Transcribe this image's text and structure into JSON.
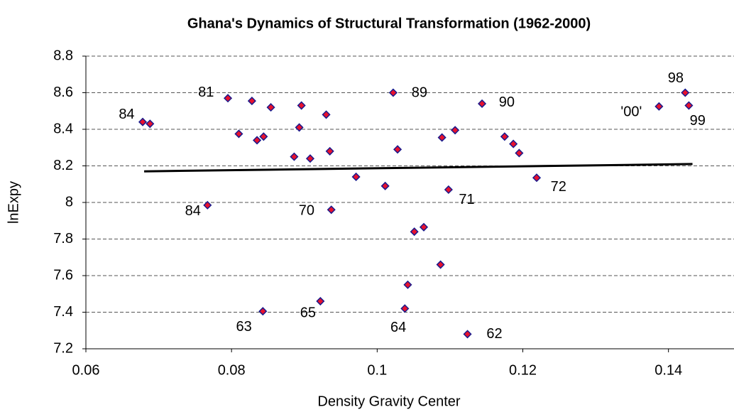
{
  "chart_data": {
    "type": "scatter",
    "title": "Ghana's Dynamics of Structural Transformation (1962-2000)",
    "x_label": "Density Gravity Center",
    "y_label": "lnExpy",
    "x": [
      0.0678,
      0.0688,
      0.0795,
      0.0828,
      0.0854,
      0.0896,
      0.081,
      0.0844,
      0.0835,
      0.0893,
      0.093,
      0.0886,
      0.0908,
      0.0935,
      0.0971,
      0.1022,
      0.1028,
      0.1011,
      0.0937,
      0.0767,
      0.1089,
      0.1107,
      0.1144,
      0.1098,
      0.1175,
      0.1187,
      0.1195,
      0.1219,
      0.1064,
      0.1051,
      0.1087,
      0.1042,
      0.1038,
      0.0922,
      0.0843,
      0.1124,
      0.1387,
      0.1423,
      0.1428
    ],
    "values": [
      8.44,
      8.43,
      8.57,
      8.555,
      8.52,
      8.53,
      8.375,
      8.36,
      8.34,
      8.41,
      8.48,
      8.25,
      8.24,
      8.28,
      8.14,
      8.6,
      8.29,
      8.09,
      7.96,
      7.985,
      8.355,
      8.395,
      8.54,
      8.07,
      8.36,
      8.32,
      8.27,
      8.135,
      7.865,
      7.84,
      7.66,
      7.55,
      7.42,
      7.46,
      7.405,
      7.28,
      8.525,
      8.6,
      8.53
    ],
    "color": "#e8112d",
    "edgecolor": "#1a1a8c",
    "trendline": {
      "x": [
        0.068,
        0.1433
      ],
      "y": [
        8.17,
        8.21
      ],
      "color": "#000000"
    },
    "annotations": [
      {
        "text": "84",
        "x": 0.0656,
        "y": 8.478
      },
      {
        "text": "81",
        "x": 0.0765,
        "y": 8.6
      },
      {
        "text": "84",
        "x": 0.0747,
        "y": 7.95
      },
      {
        "text": "70",
        "x": 0.0903,
        "y": 7.953
      },
      {
        "text": "89",
        "x": 0.1058,
        "y": 8.598
      },
      {
        "text": "90",
        "x": 0.1178,
        "y": 8.544
      },
      {
        "text": "71",
        "x": 0.1123,
        "y": 8.012
      },
      {
        "text": "72",
        "x": 0.1249,
        "y": 8.082
      },
      {
        "text": "63",
        "x": 0.0817,
        "y": 7.317
      },
      {
        "text": "65",
        "x": 0.0905,
        "y": 7.394
      },
      {
        "text": "64",
        "x": 0.1029,
        "y": 7.313
      },
      {
        "text": "62",
        "x": 0.1161,
        "y": 7.278
      },
      {
        "text": "'00'",
        "x": 0.1349,
        "y": 8.493
      },
      {
        "text": "98",
        "x": 0.141,
        "y": 8.676
      },
      {
        "text": "99",
        "x": 0.144,
        "y": 8.443
      }
    ],
    "xlim": [
      0.06,
      0.149
    ],
    "xticks": [
      0.06,
      0.08,
      0.1,
      0.12,
      0.14
    ],
    "ylim": [
      7.2,
      8.8
    ],
    "yticks": [
      7.2,
      7.4,
      7.6,
      7.8,
      8,
      8.2,
      8.4,
      8.6,
      8.8
    ],
    "grid": true
  }
}
